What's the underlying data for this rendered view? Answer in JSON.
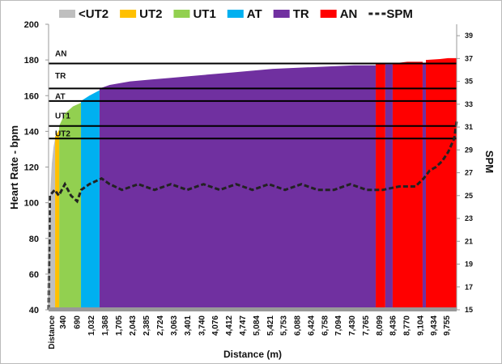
{
  "chart_data": {
    "type": "area",
    "title": "",
    "xlabel": "Distance (m)",
    "ylabel": "Heart Rate - bpm",
    "y2label": "SPM",
    "xlim": [
      0,
      10010
    ],
    "ylim": [
      40,
      200
    ],
    "y2lim": [
      15,
      40
    ],
    "yticks": [
      40,
      60,
      80,
      100,
      120,
      140,
      160,
      180,
      200
    ],
    "y2ticks": [
      15,
      17,
      19,
      21,
      23,
      25,
      27,
      29,
      31,
      33,
      35,
      37,
      39
    ],
    "xtick_labels": [
      "Distance",
      "340",
      "690",
      "1,032",
      "1,368",
      "1,705",
      "2,043",
      "2,385",
      "2,724",
      "3,063",
      "3,401",
      "3,740",
      "4,076",
      "4,412",
      "4,747",
      "5,084",
      "5,421",
      "5,753",
      "6,088",
      "6,424",
      "6,758",
      "7,094",
      "7,430",
      "7,765",
      "8,099",
      "8,436",
      "8,770",
      "9,104",
      "9,434",
      "9,755"
    ],
    "xtick_values": [
      0,
      340,
      690,
      1032,
      1368,
      1705,
      2043,
      2385,
      2724,
      3063,
      3401,
      3740,
      4076,
      4412,
      4747,
      5084,
      5421,
      5753,
      6088,
      6424,
      6758,
      7094,
      7430,
      7765,
      8099,
      8436,
      8770,
      9104,
      9434,
      9755
    ],
    "legend": [
      {
        "name": "<UT2",
        "color": "#bfbfbf"
      },
      {
        "name": "UT2",
        "color": "#ffc000"
      },
      {
        "name": "UT1",
        "color": "#92d050"
      },
      {
        "name": "AT",
        "color": "#00b0f0"
      },
      {
        "name": "TR",
        "color": "#7030a0"
      },
      {
        "name": "AN",
        "color": "#ff0000"
      },
      {
        "name": "SPM",
        "style": "dashed",
        "color": "#222222"
      }
    ],
    "legend_position": "top",
    "zone_thresholds": [
      {
        "label": "AN",
        "hr": 178
      },
      {
        "label": "TR",
        "hr": 164
      },
      {
        "label": "AT",
        "hr": 157
      },
      {
        "label": "UT1",
        "hr": 143
      },
      {
        "label": "UT2",
        "hr": 136
      }
    ],
    "zone_band_labels": [
      {
        "label": "AN",
        "hr": 184
      },
      {
        "label": "TR",
        "hr": 171.5
      },
      {
        "label": "AT",
        "hr": 160
      },
      {
        "label": "UT1",
        "hr": 149
      },
      {
        "label": "UT2",
        "hr": 139
      }
    ],
    "hr_segments": [
      {
        "zone": "<UT2",
        "points": [
          [
            0,
            60
          ],
          [
            40,
            105
          ],
          [
            80,
            122
          ],
          [
            120,
            131
          ],
          [
            160,
            136
          ]
        ]
      },
      {
        "zone": "UT2",
        "points": [
          [
            160,
            137
          ],
          [
            210,
            139
          ],
          [
            260,
            141
          ]
        ]
      },
      {
        "zone": "UT1",
        "points": [
          [
            260,
            143
          ],
          [
            400,
            150
          ],
          [
            600,
            154
          ],
          [
            795,
            156
          ]
        ]
      },
      {
        "zone": "AT",
        "points": [
          [
            795,
            157
          ],
          [
            1000,
            160
          ],
          [
            1250,
            163
          ]
        ]
      },
      {
        "zone": "TR",
        "points": [
          [
            1250,
            164
          ],
          [
            1500,
            166
          ],
          [
            2000,
            168
          ],
          [
            2500,
            169
          ],
          [
            3000,
            170
          ],
          [
            3500,
            171
          ],
          [
            4000,
            172
          ],
          [
            4500,
            173
          ],
          [
            5000,
            174
          ],
          [
            5500,
            175
          ],
          [
            6000,
            175.5
          ],
          [
            6500,
            176
          ],
          [
            7000,
            176.5
          ],
          [
            7500,
            177
          ],
          [
            8025,
            177
          ]
        ]
      },
      {
        "zone": "AN",
        "points": [
          [
            8025,
            178
          ],
          [
            8260,
            178
          ]
        ]
      },
      {
        "zone": "TR",
        "points": [
          [
            8260,
            177.5
          ],
          [
            8440,
            177.5
          ]
        ]
      },
      {
        "zone": "AN",
        "points": [
          [
            8440,
            178
          ],
          [
            8800,
            179
          ],
          [
            9175,
            179
          ]
        ]
      },
      {
        "zone": "TR",
        "points": [
          [
            9175,
            178
          ],
          [
            9255,
            178
          ]
        ]
      },
      {
        "zone": "AN",
        "points": [
          [
            9255,
            180
          ],
          [
            9600,
            180.5
          ],
          [
            9800,
            181
          ],
          [
            10010,
            181
          ]
        ]
      }
    ],
    "spm": [
      [
        0,
        15
      ],
      [
        30,
        25
      ],
      [
        150,
        25.5
      ],
      [
        250,
        25
      ],
      [
        400,
        26
      ],
      [
        550,
        25
      ],
      [
        700,
        24.5
      ],
      [
        800,
        25.5
      ],
      [
        1000,
        26
      ],
      [
        1300,
        26.5
      ],
      [
        1500,
        26
      ],
      [
        1800,
        25.5
      ],
      [
        2200,
        26
      ],
      [
        2600,
        25.5
      ],
      [
        3000,
        26
      ],
      [
        3400,
        25.5
      ],
      [
        3800,
        26
      ],
      [
        4200,
        25.5
      ],
      [
        4600,
        26
      ],
      [
        5000,
        25.5
      ],
      [
        5400,
        26
      ],
      [
        5800,
        25.5
      ],
      [
        6200,
        26
      ],
      [
        6600,
        25.5
      ],
      [
        7000,
        25.5
      ],
      [
        7400,
        26
      ],
      [
        7800,
        25.5
      ],
      [
        8200,
        25.5
      ],
      [
        8600,
        25.8
      ],
      [
        9000,
        25.8
      ],
      [
        9200,
        26.5
      ],
      [
        9350,
        27.2
      ],
      [
        9500,
        27.5
      ],
      [
        9650,
        28
      ],
      [
        9800,
        28.8
      ],
      [
        9950,
        30
      ],
      [
        10010,
        31.5
      ]
    ]
  }
}
